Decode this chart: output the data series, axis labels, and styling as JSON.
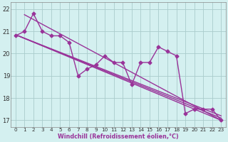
{
  "xlabel": "Windchill (Refroidissement éolien,°C)",
  "line_color": "#993399",
  "bg_color": "#d4f0f0",
  "grid_color": "#aacccc",
  "marker": "D",
  "markersize": 2.5,
  "linewidth": 1.0,
  "xlim": [
    -0.5,
    23.5
  ],
  "ylim": [
    16.7,
    22.3
  ],
  "yticks": [
    17,
    18,
    19,
    20,
    21,
    22
  ],
  "xticks": [
    0,
    1,
    2,
    3,
    4,
    5,
    6,
    7,
    8,
    9,
    10,
    11,
    12,
    13,
    14,
    15,
    16,
    17,
    18,
    19,
    20,
    21,
    22,
    23
  ],
  "data_series": [
    20.8,
    21.0,
    21.8,
    21.0,
    20.8,
    20.8,
    20.5,
    19.0,
    19.3,
    19.5,
    19.9,
    19.6,
    19.6,
    18.6,
    19.6,
    19.6,
    20.3,
    20.1,
    19.9,
    17.3,
    17.5,
    17.5,
    17.5,
    17.0
  ],
  "trend_lines": [
    {
      "x0": 0,
      "y0": 20.85,
      "x1": 23,
      "y1": 17.0
    },
    {
      "x0": 0,
      "y0": 20.85,
      "x1": 23,
      "y1": 17.1
    },
    {
      "x0": 1,
      "y0": 21.75,
      "x1": 23,
      "y1": 17.0
    },
    {
      "x0": 0,
      "y0": 20.85,
      "x1": 23,
      "y1": 17.2
    }
  ]
}
